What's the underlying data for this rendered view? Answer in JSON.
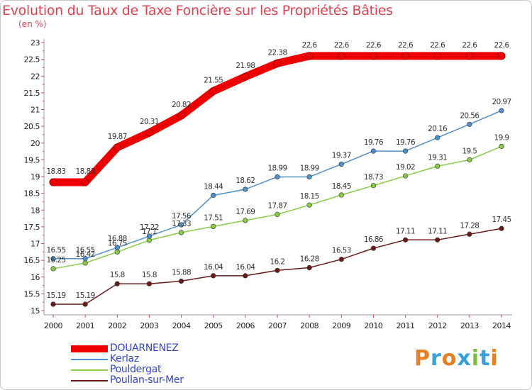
{
  "title": "Evolution du Taux de Taxe Foncière sur les Propriétés Bâties",
  "unit_label": "(en %)",
  "brand": "Proxiti",
  "colors": {
    "title": "#e0414f",
    "axis": "#999999",
    "tick_marks": "#e0414f",
    "legend_text": "#3344cc"
  },
  "chart_data": {
    "type": "line",
    "title": "Evolution du Taux de Taxe Foncière sur les Propriétés Bâties",
    "ylabel": "(en %)",
    "xlabel": "",
    "ylim": [
      15,
      23
    ],
    "yticks": [
      "15",
      "15.5",
      "16",
      "16.5",
      "17",
      "17.5",
      "18",
      "18.5",
      "19",
      "19.5",
      "20",
      "20.5",
      "21",
      "21.5",
      "22",
      "22.5",
      "23"
    ],
    "categories": [
      "2000",
      "2001",
      "2002",
      "2003",
      "2004",
      "2005",
      "2006",
      "2007",
      "2008",
      "2009",
      "2010",
      "2011",
      "2012",
      "2013",
      "2014"
    ],
    "grid": false,
    "legend_position": "bottom-left",
    "series": [
      {
        "name": "DOUARNENEZ",
        "color": "#ee0000",
        "values": [
          18.83,
          18.83,
          19.87,
          20.31,
          20.82,
          21.55,
          21.98,
          22.38,
          22.6,
          22.6,
          22.6,
          22.6,
          22.6,
          22.6,
          22.6
        ],
        "labels": [
          "18.83",
          "18.83",
          "19.87",
          "20.31",
          "20.82",
          "21.55",
          "21.98",
          "22.38",
          "22.6",
          "22.6",
          "22.6",
          "22.6",
          "22.6",
          "22.6",
          "22.6"
        ]
      },
      {
        "name": "Kerlaz",
        "color": "#4f8fcc",
        "values": [
          16.55,
          16.55,
          16.88,
          17.22,
          17.56,
          18.44,
          18.62,
          18.99,
          18.99,
          19.37,
          19.76,
          19.76,
          20.16,
          20.56,
          20.97
        ],
        "labels": [
          "16.55",
          "16.55",
          "16.88",
          "17.22",
          "17.56",
          "18.44",
          "18.62",
          "18.99",
          "18.99",
          "19.37",
          "19.76",
          "19.76",
          "20.16",
          "20.56",
          "20.97"
        ]
      },
      {
        "name": "Pouldergat",
        "color": "#88cc44",
        "values": [
          16.25,
          16.42,
          16.75,
          17.1,
          17.33,
          17.51,
          17.69,
          17.87,
          18.15,
          18.45,
          18.73,
          19.02,
          19.31,
          19.5,
          19.9
        ],
        "labels": [
          "16.25",
          "16.42",
          "16.75",
          "17.1",
          "17.33",
          "17.51",
          "17.69",
          "17.87",
          "18.15",
          "18.45",
          "18.73",
          "19.02",
          "19.31",
          "19.5",
          "19.9"
        ]
      },
      {
        "name": "Poullan-sur-Mer",
        "color": "#6b1a1a",
        "values": [
          15.19,
          15.19,
          15.8,
          15.8,
          15.88,
          16.04,
          16.04,
          16.2,
          16.28,
          16.53,
          16.86,
          17.11,
          17.11,
          17.28,
          17.45
        ],
        "labels": [
          "15.19",
          "15.19",
          "15.8",
          "15.8",
          "15.88",
          "16.04",
          "16.04",
          "16.2",
          "16.28",
          "16.53",
          "16.86",
          "17.11",
          "17.11",
          "17.28",
          "17.45"
        ]
      }
    ]
  }
}
